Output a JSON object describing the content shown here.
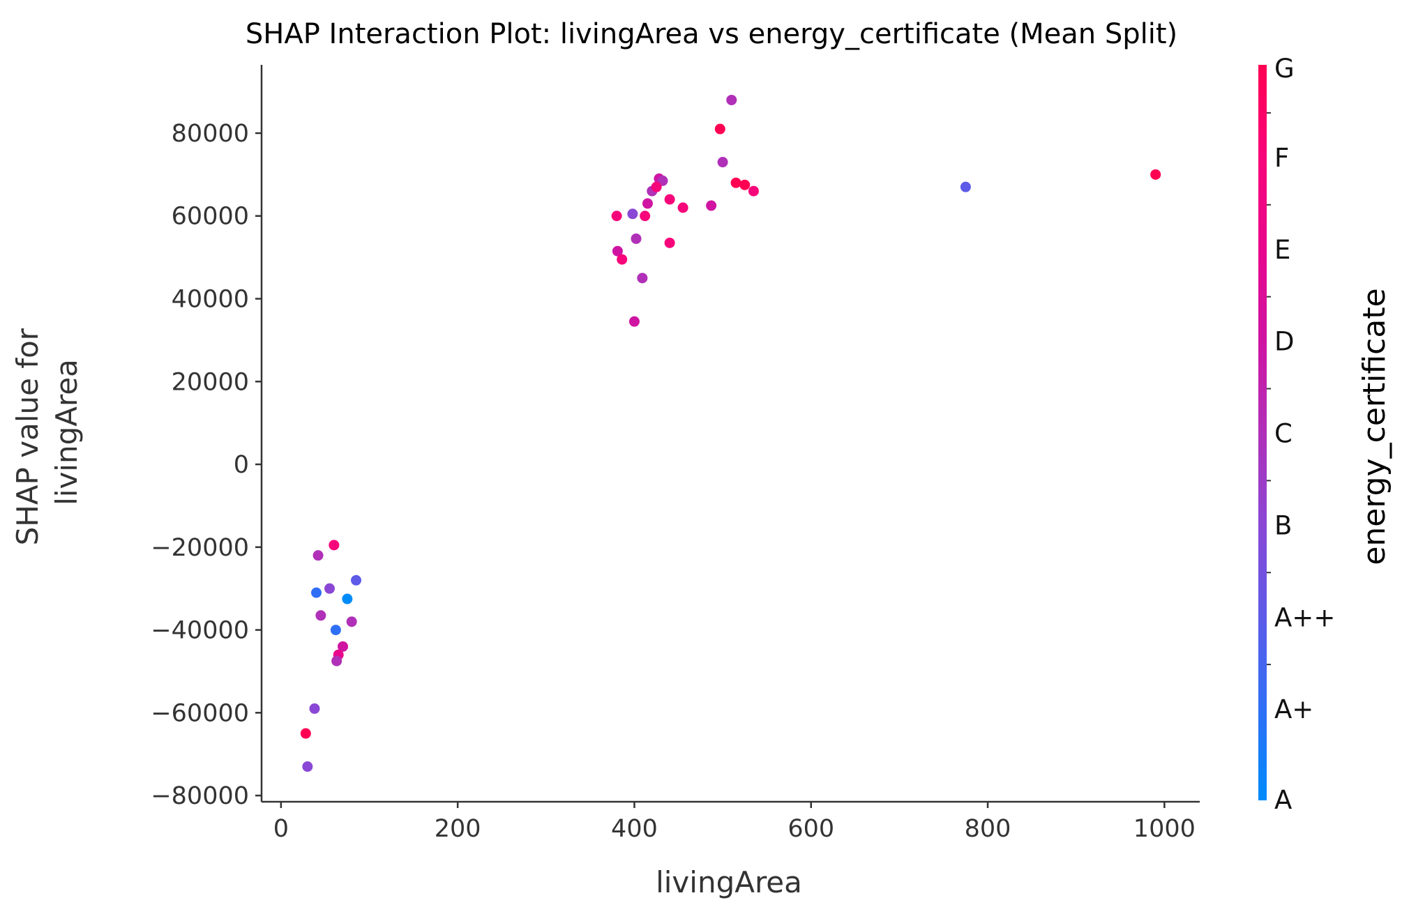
{
  "chart_data": {
    "type": "scatter",
    "title": "SHAP Interaction Plot: livingArea vs energy_certificate (Mean Split)",
    "xlabel": "livingArea",
    "ylabel": "SHAP value for\nlivingArea",
    "xlim": [
      -22,
      1040
    ],
    "ylim": [
      -81500,
      96500
    ],
    "x_ticks": [
      0,
      200,
      400,
      600,
      800,
      1000
    ],
    "y_ticks": [
      -80000,
      -60000,
      -40000,
      -20000,
      0,
      20000,
      40000,
      60000,
      80000
    ],
    "x_tick_labels": [
      "0",
      "200",
      "400",
      "600",
      "800",
      "1000"
    ],
    "y_tick_labels": [
      "−80000",
      "−60000",
      "−40000",
      "−20000",
      "0",
      "20000",
      "40000",
      "60000",
      "80000"
    ],
    "grid": false,
    "legend": "colorbar-right",
    "colorbar": {
      "label": "energy_certificate",
      "categories": [
        "A",
        "A+",
        "A++",
        "B",
        "C",
        "D",
        "E",
        "F",
        "G"
      ],
      "colors": [
        "#008bfb",
        "#2f6ff5",
        "#5d5be8",
        "#8a47d5",
        "#b030b8",
        "#cf14a2",
        "#e8068c",
        "#f7057a",
        "#ff0052"
      ]
    },
    "series": [
      {
        "color_value_legend": "A..G index (0=A, 8=G)",
        "points": [
          [
            28,
            -65000,
            8
          ],
          [
            30,
            -73000,
            3
          ],
          [
            38,
            -59000,
            3
          ],
          [
            775,
            67000,
            2
          ],
          [
            990,
            70000,
            8
          ],
          [
            510,
            88000,
            4
          ],
          [
            497,
            81000,
            8
          ],
          [
            500,
            73000,
            4
          ],
          [
            515,
            68000,
            8
          ],
          [
            525,
            67500,
            8
          ],
          [
            535,
            66000,
            7
          ],
          [
            487,
            62500,
            5
          ],
          [
            455,
            62000,
            7
          ],
          [
            440,
            64000,
            7
          ],
          [
            428,
            69000,
            5
          ],
          [
            432,
            68500,
            4
          ],
          [
            420,
            66000,
            4
          ],
          [
            425,
            67000,
            7
          ],
          [
            415,
            63000,
            5
          ],
          [
            412,
            60000,
            7
          ],
          [
            398,
            60500,
            3
          ],
          [
            380,
            60000,
            7
          ],
          [
            381,
            51500,
            5
          ],
          [
            386,
            49500,
            7
          ],
          [
            402,
            54500,
            4
          ],
          [
            409,
            45000,
            4
          ],
          [
            440,
            53500,
            7
          ],
          [
            400,
            34500,
            5
          ],
          [
            42,
            -22000,
            4
          ],
          [
            60,
            -19500,
            7
          ],
          [
            45,
            -36500,
            4
          ],
          [
            55,
            -30000,
            3
          ],
          [
            40,
            -31000,
            1
          ],
          [
            62,
            -40000,
            1
          ],
          [
            70,
            -44000,
            5
          ],
          [
            65,
            -46000,
            6
          ],
          [
            63,
            -47500,
            4
          ],
          [
            80,
            -38000,
            4
          ],
          [
            75,
            -32500,
            0
          ],
          [
            85,
            -28000,
            2
          ]
        ]
      }
    ]
  }
}
